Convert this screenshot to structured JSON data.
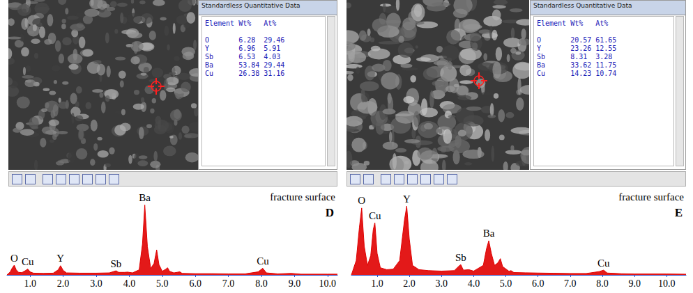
{
  "sem_panels": [
    {
      "window_title": "Standardless Quantitative Data",
      "columns": [
        "Element",
        "Wt%",
        "At%"
      ],
      "rows": [
        [
          "O",
          6.28,
          29.46
        ],
        [
          "Y",
          6.96,
          5.91
        ],
        [
          "Sb",
          6.53,
          4.03
        ],
        [
          "Ba",
          53.84,
          29.44
        ],
        [
          "Cu",
          26.38,
          31.16
        ]
      ]
    },
    {
      "window_title": "Standardless Quantitative Data",
      "columns": [
        "Element",
        "Wt%",
        "At%"
      ],
      "rows": [
        [
          "O",
          20.57,
          61.65
        ],
        [
          "Y",
          23.26,
          12.55
        ],
        [
          "Sb",
          8.31,
          3.28
        ],
        [
          "Ba",
          33.62,
          11.75
        ],
        [
          "Cu",
          14.23,
          10.74
        ]
      ]
    }
  ],
  "chart_data": [
    {
      "type": "line",
      "title": "fracture surface",
      "panel_label": "D",
      "color": "#e00000",
      "x": [
        0.3,
        0.4,
        0.45,
        0.52,
        0.58,
        0.65,
        0.75,
        0.85,
        0.93,
        1.0,
        1.1,
        1.4,
        1.7,
        1.85,
        1.92,
        2.0,
        2.1,
        2.5,
        3.0,
        3.4,
        3.55,
        3.6,
        3.68,
        3.85,
        3.95,
        4.1,
        4.3,
        4.4,
        4.47,
        4.55,
        4.65,
        4.75,
        4.83,
        4.9,
        5.0,
        5.1,
        5.16,
        5.22,
        5.35,
        5.53,
        5.6,
        6.0,
        6.5,
        7.0,
        7.5,
        7.9,
        8.04,
        8.15,
        8.5,
        8.9,
        9.2,
        10.0,
        10.3
      ],
      "values": [
        0,
        12,
        25,
        38,
        20,
        10,
        9,
        16,
        23,
        12,
        7,
        6,
        7,
        20,
        36,
        18,
        8,
        7,
        7,
        8,
        14,
        16,
        10,
        10,
        11,
        8,
        20,
        120,
        273,
        110,
        25,
        45,
        98,
        40,
        14,
        22,
        28,
        14,
        8,
        12,
        6,
        5,
        5,
        4,
        4,
        12,
        26,
        8,
        4,
        6,
        3,
        3,
        3
      ],
      "xlim": [
        0.3,
        10.3
      ],
      "xticks": [
        {
          "value": 1,
          "label": "1.0"
        },
        {
          "value": 2,
          "label": "2.0"
        },
        {
          "value": 3,
          "label": "3.0"
        },
        {
          "value": 4,
          "label": "4.0"
        },
        {
          "value": 5,
          "label": "5.0"
        },
        {
          "value": 6,
          "label": "6.0"
        },
        {
          "value": 7,
          "label": "7.0"
        },
        {
          "value": 8,
          "label": "8.0"
        },
        {
          "value": 9,
          "label": "9.0"
        },
        {
          "value": 10,
          "label": "10.0"
        }
      ],
      "ylim": [
        0,
        280
      ],
      "tick_labels": "x",
      "grid": false,
      "annotations": [
        {
          "text": "O",
          "x": 0.52,
          "y": 38
        },
        {
          "text": "Cu",
          "x": 0.93,
          "y": 23
        },
        {
          "text": "Y",
          "x": 1.92,
          "y": 36
        },
        {
          "text": "Sb",
          "x": 3.6,
          "y": 16
        },
        {
          "text": "Ba",
          "x": 4.47,
          "y": 273
        },
        {
          "text": "Cu",
          "x": 8.04,
          "y": 26
        }
      ]
    },
    {
      "type": "line",
      "title": "fracture surface",
      "panel_label": "E",
      "color": "#e00000",
      "x": [
        0.2,
        0.35,
        0.45,
        0.52,
        0.6,
        0.7,
        0.8,
        0.88,
        0.93,
        1.0,
        1.1,
        1.3,
        1.5,
        1.7,
        1.85,
        1.92,
        2.0,
        2.1,
        2.3,
        2.6,
        3.0,
        3.4,
        3.55,
        3.6,
        3.68,
        3.85,
        4.0,
        4.3,
        4.4,
        4.47,
        4.55,
        4.65,
        4.75,
        4.83,
        4.9,
        5.1,
        5.16,
        5.25,
        5.6,
        6.0,
        6.5,
        7.0,
        7.5,
        7.9,
        8.04,
        8.15,
        8.6,
        9.0,
        10.0,
        10.6
      ],
      "values": [
        0,
        60,
        200,
        280,
        120,
        40,
        80,
        190,
        218,
        90,
        30,
        22,
        24,
        60,
        230,
        288,
        150,
        40,
        22,
        18,
        16,
        18,
        38,
        43,
        20,
        22,
        16,
        40,
        110,
        143,
        90,
        40,
        50,
        68,
        35,
        15,
        18,
        10,
        9,
        8,
        7,
        6,
        6,
        14,
        20,
        8,
        5,
        4,
        4,
        3
      ],
      "xlim": [
        0.2,
        10.6
      ],
      "xticks": [
        {
          "value": 1,
          "label": "1.0"
        },
        {
          "value": 2,
          "label": "2.0"
        },
        {
          "value": 3,
          "label": "3.0"
        },
        {
          "value": 4,
          "label": "4.0"
        },
        {
          "value": 5,
          "label": "5.0"
        },
        {
          "value": 6,
          "label": "6.0"
        },
        {
          "value": 7,
          "label": "7.0"
        },
        {
          "value": 8,
          "label": "8.0"
        },
        {
          "value": 9,
          "label": "9.0"
        },
        {
          "value": 10,
          "label": "10.0"
        }
      ],
      "ylim": [
        0,
        300
      ],
      "tick_labels": "x",
      "grid": false,
      "annotations": [
        {
          "text": "O",
          "x": 0.52,
          "y": 280
        },
        {
          "text": "Cu",
          "x": 0.93,
          "y": 218
        },
        {
          "text": "Y",
          "x": 1.92,
          "y": 288
        },
        {
          "text": "Sb",
          "x": 3.6,
          "y": 43
        },
        {
          "text": "Ba",
          "x": 4.47,
          "y": 143
        },
        {
          "text": "Cu",
          "x": 8.04,
          "y": 20
        }
      ]
    }
  ]
}
